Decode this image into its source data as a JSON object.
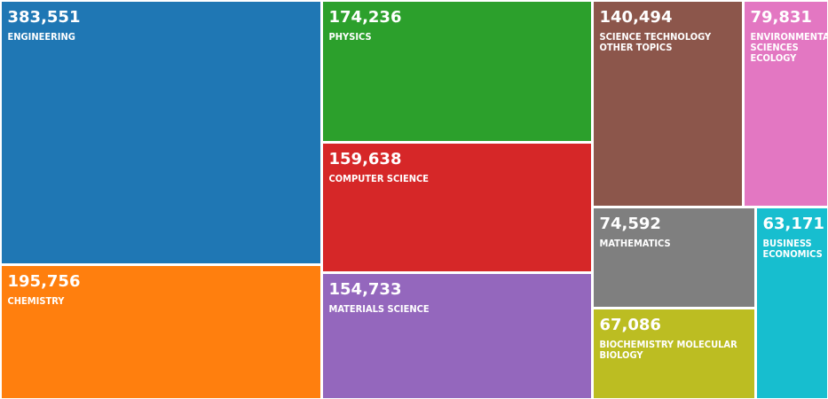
{
  "chart_data": {
    "type": "treemap",
    "title": "",
    "items": [
      {
        "label": "ENGINEERING",
        "value": 383551,
        "display_value": "383,551",
        "color": "#1f77b4"
      },
      {
        "label": "CHEMISTRY",
        "value": 195756,
        "display_value": "195,756",
        "color": "#ff7f0e"
      },
      {
        "label": "PHYSICS",
        "value": 174236,
        "display_value": "174,236",
        "color": "#2ca02c"
      },
      {
        "label": "COMPUTER SCIENCE",
        "value": 159638,
        "display_value": "159,638",
        "color": "#d62728"
      },
      {
        "label": "MATERIALS SCIENCE",
        "value": 154733,
        "display_value": "154,733",
        "color": "#9467bd"
      },
      {
        "label": "SCIENCE TECHNOLOGY OTHER TOPICS",
        "value": 140494,
        "display_value": "140,494",
        "color": "#8c564b"
      },
      {
        "label": "ENVIRONMENTAL SCIENCES ECOLOGY",
        "value": 79831,
        "display_value": "79,831",
        "color": "#e377c2"
      },
      {
        "label": "MATHEMATICS",
        "value": 74592,
        "display_value": "74,592",
        "color": "#7f7f7f"
      },
      {
        "label": "BUSINESS ECONOMICS",
        "value": 63171,
        "display_value": "63,171",
        "color": "#17becf"
      },
      {
        "label": "BIOCHEMISTRY MOLECULAR BIOLOGY",
        "value": 67086,
        "display_value": "67,086",
        "color": "#bcbd22"
      }
    ]
  }
}
